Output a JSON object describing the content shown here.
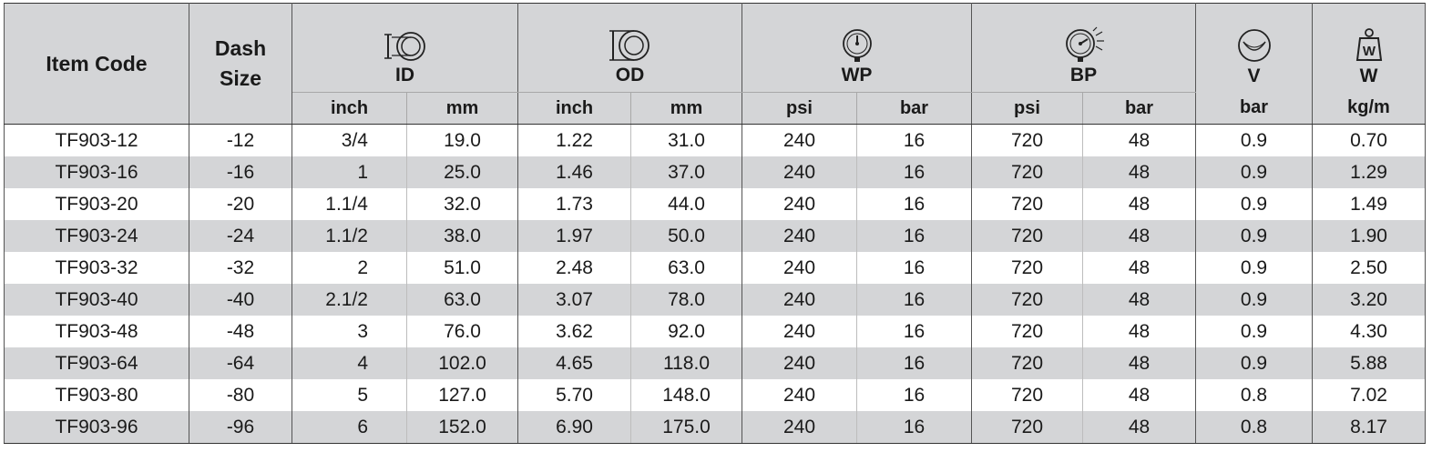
{
  "headers": {
    "item_code": "Item Code",
    "dash_size_1": "Dash",
    "dash_size_2": "Size",
    "id": "ID",
    "od": "OD",
    "wp": "WP",
    "bp": "BP",
    "v": "V",
    "w": "W",
    "id_unit_1": "inch",
    "id_unit_2": "mm",
    "od_unit_1": "inch",
    "od_unit_2": "mm",
    "wp_unit_1": "psi",
    "wp_unit_2": "bar",
    "bp_unit_1": "psi",
    "bp_unit_2": "bar",
    "v_unit": "bar",
    "w_unit": "kg/m"
  },
  "icons": {
    "id": "inner-diameter-icon",
    "od": "outer-diameter-icon",
    "wp": "pressure-gauge-icon",
    "bp": "burst-gauge-icon",
    "v": "vacuum-icon",
    "w": "weight-icon"
  },
  "rows": [
    [
      "TF903-12",
      "-12",
      "3/4",
      "19.0",
      "1.22",
      "31.0",
      "240",
      "16",
      "720",
      "48",
      "0.9",
      "0.70"
    ],
    [
      "TF903-16",
      "-16",
      "1",
      "25.0",
      "1.46",
      "37.0",
      "240",
      "16",
      "720",
      "48",
      "0.9",
      "1.29"
    ],
    [
      "TF903-20",
      "-20",
      "1.1/4",
      "32.0",
      "1.73",
      "44.0",
      "240",
      "16",
      "720",
      "48",
      "0.9",
      "1.49"
    ],
    [
      "TF903-24",
      "-24",
      "1.1/2",
      "38.0",
      "1.97",
      "50.0",
      "240",
      "16",
      "720",
      "48",
      "0.9",
      "1.90"
    ],
    [
      "TF903-32",
      "-32",
      "2",
      "51.0",
      "2.48",
      "63.0",
      "240",
      "16",
      "720",
      "48",
      "0.9",
      "2.50"
    ],
    [
      "TF903-40",
      "-40",
      "2.1/2",
      "63.0",
      "3.07",
      "78.0",
      "240",
      "16",
      "720",
      "48",
      "0.9",
      "3.20"
    ],
    [
      "TF903-48",
      "-48",
      "3",
      "76.0",
      "3.62",
      "92.0",
      "240",
      "16",
      "720",
      "48",
      "0.9",
      "4.30"
    ],
    [
      "TF903-64",
      "-64",
      "4",
      "102.0",
      "4.65",
      "118.0",
      "240",
      "16",
      "720",
      "48",
      "0.9",
      "5.88"
    ],
    [
      "TF903-80",
      "-80",
      "5",
      "127.0",
      "5.70",
      "148.0",
      "240",
      "16",
      "720",
      "48",
      "0.8",
      "7.02"
    ],
    [
      "TF903-96",
      "-96",
      "6",
      "152.0",
      "6.90",
      "175.0",
      "240",
      "16",
      "720",
      "48",
      "0.8",
      "8.17"
    ]
  ]
}
